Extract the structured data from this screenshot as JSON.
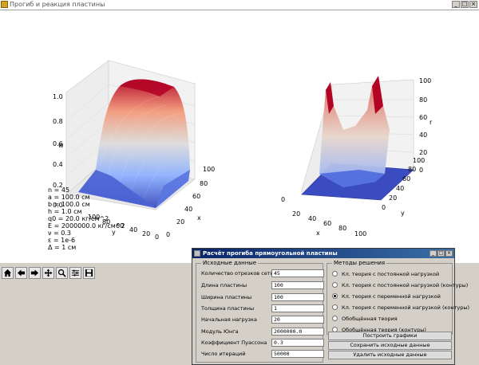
{
  "window": {
    "title": "Прогиб и реакция пластины"
  },
  "params": [
    "n = 45",
    "a = 100.0 см",
    "b = 100.0 см",
    "h = 1.0 см",
    "q0 = 20.0 кг/см^2",
    "E = 2000000.0 кг/см^2",
    "ν = 0.3",
    "ε = 1e-6",
    "Δ = 1 см"
  ],
  "plot_left": {
    "z_ticks": [
      "0.0",
      "0.2",
      "0.4",
      "0.6",
      "0.8",
      "1.0"
    ],
    "z_label": "w",
    "x_ticks": [
      "0",
      "20",
      "40",
      "60",
      "80",
      "100"
    ],
    "x_label": "x",
    "y_ticks": [
      "100",
      "80",
      "60",
      "40",
      "20",
      "0"
    ],
    "y_label": "y"
  },
  "plot_right": {
    "z_ticks": [
      "0",
      "20",
      "40",
      "60",
      "80",
      "100"
    ],
    "z_label": "r",
    "x_ticks": [
      "0",
      "20",
      "40",
      "60",
      "80",
      "100"
    ],
    "x_label": "x",
    "y_ticks": [
      "0",
      "20",
      "40",
      "60",
      "80",
      "100"
    ],
    "y_label": "y"
  },
  "toolbar": {
    "icons": [
      "home-icon",
      "back-icon",
      "forward-icon",
      "pan-icon",
      "zoom-icon",
      "configure-icon",
      "save-icon"
    ]
  },
  "dialog": {
    "title": "Расчёт прогиба прямоугольной пластины",
    "inputs_group": "Исходные данные",
    "fields": [
      {
        "label": "Количество отрезков сетки",
        "value": "45"
      },
      {
        "label": "Длина пластины",
        "value": "100"
      },
      {
        "label": "Ширина пластины",
        "value": "100"
      },
      {
        "label": "Толщина пластины",
        "value": "1"
      },
      {
        "label": "Начальная нагрузка",
        "value": "20"
      },
      {
        "label": "Модуль Юнга",
        "value": "2000000.0"
      },
      {
        "label": "Коэффициент Пуассона",
        "value": "0.3"
      },
      {
        "label": "Число итераций",
        "value": "50000"
      }
    ],
    "methods_group": "Методы решения",
    "methods": [
      {
        "label": "Кл. теория с постоянной нагрузкой",
        "selected": false
      },
      {
        "label": "Кл. теория с постоянной нагрузкой (контуры)",
        "selected": false
      },
      {
        "label": "Кл. теория с переменной нагрузкой",
        "selected": true
      },
      {
        "label": "Кл. теория с переменной нагрузкой (контуры)",
        "selected": false
      },
      {
        "label": "Обобщённая теория",
        "selected": false
      },
      {
        "label": "Обобщённая теория (контуры)",
        "selected": false
      }
    ],
    "buttons": {
      "plot": "Построить графики",
      "save": "Сохранить исходные данные",
      "delete": "Удалить исходные данные"
    }
  }
}
